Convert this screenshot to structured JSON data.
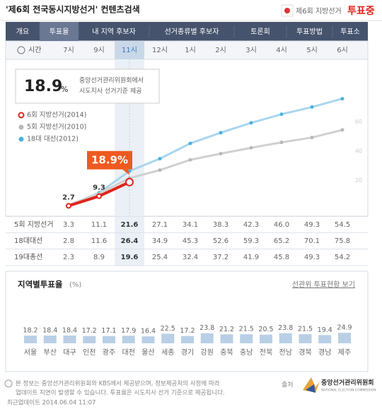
{
  "header": {
    "title": "'제6회 전국동시지방선거' 컨텐츠검색",
    "badge": "제6회 지방선거",
    "status": "투표중"
  },
  "tabs": {
    "items": [
      "개요",
      "투표율",
      "내 지역 후보자",
      "선거종류별 후보자",
      "토론회",
      "투표방법",
      "투표소"
    ],
    "active": 1
  },
  "time_label": "시간",
  "info": {
    "value": "18.9",
    "unit": "%",
    "lines": [
      "중앙선거관리위원회에서",
      "시도지사 선거기준 제공"
    ]
  },
  "chart_data": [
    {
      "type": "line",
      "categories": [
        "7시",
        "9시",
        "11시",
        "12시",
        "1시",
        "2시",
        "3시",
        "4시",
        "5시",
        "6시"
      ],
      "highlight": 2,
      "ylim": [
        0,
        80
      ],
      "yticks": [
        20,
        40,
        60
      ],
      "grid": false,
      "series": [
        {
          "name": "6회 지방선거(2014)",
          "color": "#e0241b",
          "values": [
            2.7,
            9.3,
            18.9,
            null,
            null,
            null,
            null,
            null,
            null,
            null
          ],
          "value_labels": [
            "2.7",
            "9.3",
            "18.9%"
          ]
        },
        {
          "name": "5회 지방선거(2010)",
          "color": "#b8b8b8",
          "values": [
            3.3,
            11.1,
            21.6,
            27.1,
            34.1,
            38.3,
            42.3,
            46.0,
            49.3,
            54.5
          ]
        },
        {
          "name": "18대 대선(2012)",
          "color": "#49b2e0",
          "values": [
            2.8,
            11.6,
            26.4,
            34.9,
            45.3,
            52.6,
            59.3,
            65.2,
            70.1,
            75.8
          ]
        }
      ]
    },
    {
      "type": "bar",
      "title": "지역별투표율",
      "unit": "(%)",
      "link": "선관위 투표현황 보기",
      "categories": [
        "서울",
        "부산",
        "대구",
        "인천",
        "광주",
        "대전",
        "울산",
        "세종",
        "경기",
        "강원",
        "충북",
        "충남",
        "전북",
        "전남",
        "경북",
        "경남",
        "제주"
      ],
      "values": [
        18.2,
        18.4,
        18.4,
        17.2,
        17.1,
        17.9,
        16.4,
        22.5,
        17.2,
        23.8,
        21.2,
        21.5,
        20.5,
        23.8,
        21.5,
        19.4,
        24.9
      ],
      "value_labels": [
        "18.2",
        "18.4",
        "18.4",
        "17.2",
        "17.1",
        "17.9",
        "16.4",
        "22.5",
        "17.2",
        "23.8",
        "21.2",
        "21.5",
        "20.5",
        "23.8",
        "21.5",
        "19.4",
        "24.9"
      ],
      "color": "#b9cfe6",
      "ylim": [
        0,
        100
      ]
    }
  ],
  "table": {
    "rows": [
      {
        "name": "5회 지방선거",
        "values": [
          "3.3",
          "11.1",
          "21.6",
          "27.1",
          "34.1",
          "38.3",
          "42.3",
          "46.0",
          "49.3",
          "54.5"
        ]
      },
      {
        "name": "18대대선",
        "values": [
          "2.8",
          "11.6",
          "26.4",
          "34.9",
          "45.3",
          "52.6",
          "59.3",
          "65.2",
          "70.1",
          "75.8"
        ]
      },
      {
        "name": "19대총선",
        "values": [
          "2.3",
          "8.9",
          "19.6",
          "25.4",
          "32.4",
          "37.2",
          "41.9",
          "45.8",
          "49.3",
          "54.2"
        ]
      }
    ]
  },
  "footer": {
    "lines": [
      "본 정보는 중앙선거관리위원회와 KBS에서 제공받으며, 정보제공처의 사정에 따라",
      "업데이트 지연이 발생할 수 있습니다. 투표율은 시도지사 선거 기준으로 제공됩니다."
    ],
    "updated": "최근업데이트 2014.06.04 11:07",
    "source": "출처",
    "org": "중앙선거관리위원회",
    "org_en": "NATIONAL ELECTION COMMISSION"
  }
}
